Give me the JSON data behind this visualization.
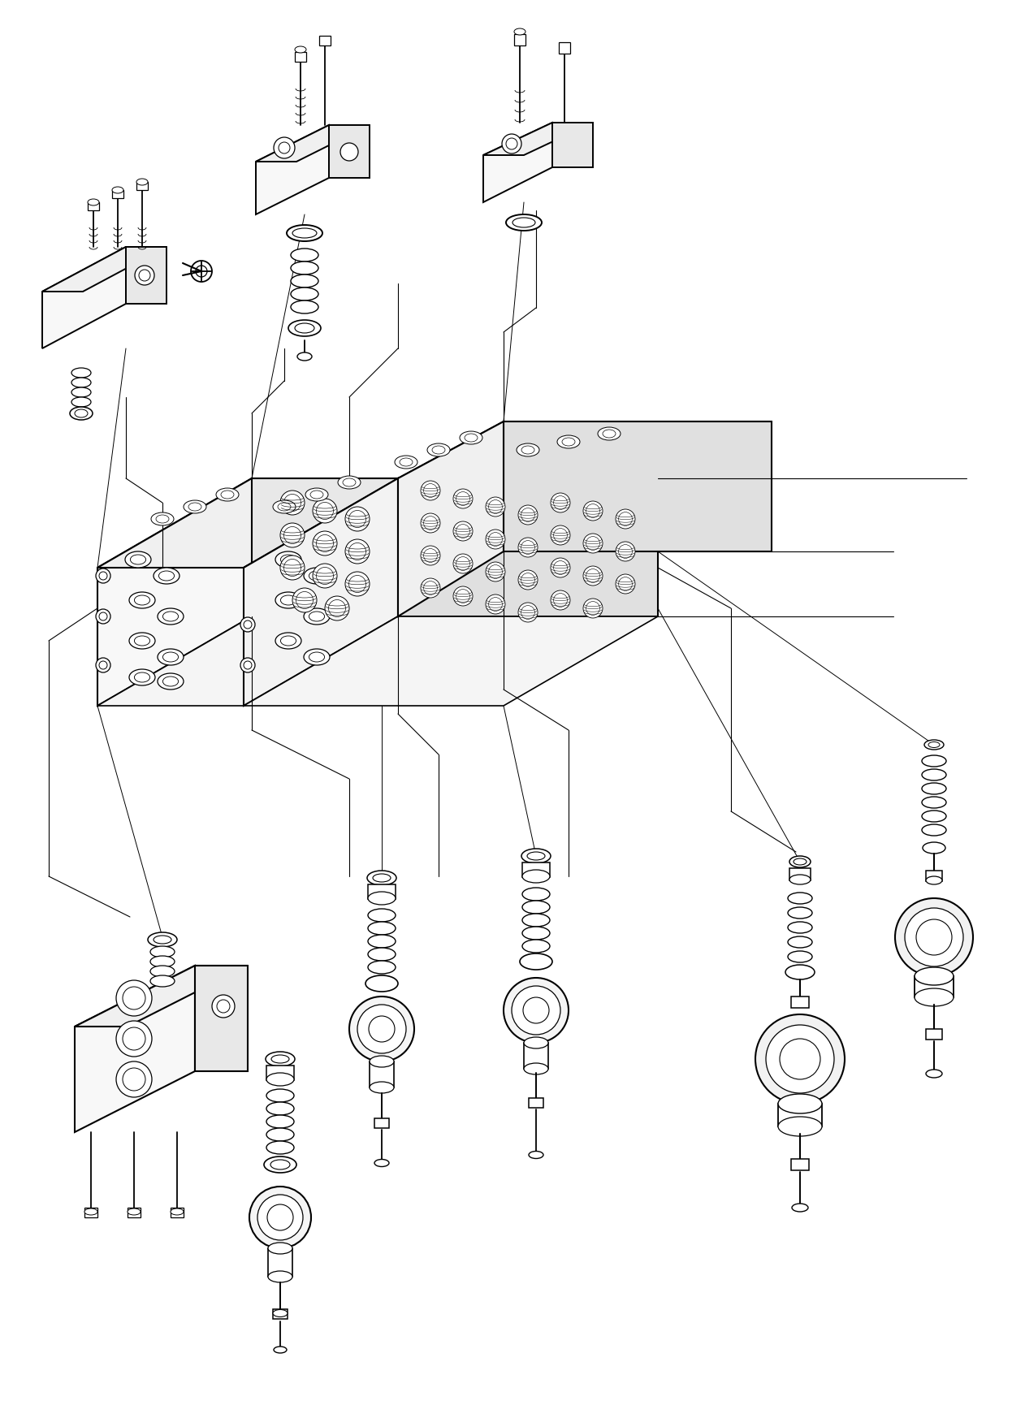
{
  "background_color": "#ffffff",
  "line_color": "#000000",
  "lw": 1.0,
  "fig_width": 12.46,
  "fig_height": 17.31
}
